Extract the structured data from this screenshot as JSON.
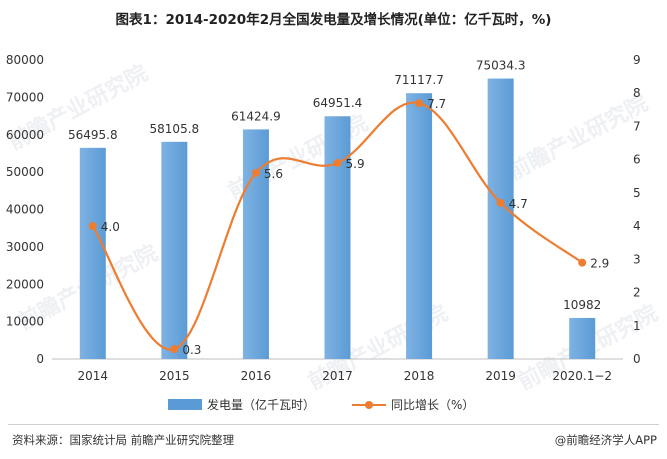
{
  "title": "图表1：2014-2020年2月全国发电量及增长情况(单位：亿千瓦时，%)",
  "footer": {
    "source": "资料来源：国家统计局 前瞻产业研究院整理",
    "brand": "@前瞻经济学人APP"
  },
  "watermark": "前瞻产业研究院",
  "colors": {
    "bar": "#5b9bd5",
    "bar_light": "#7fb2e3",
    "line": "#ed7d31"
  },
  "chart_data": {
    "type": "bar+line",
    "categories": [
      "2014",
      "2015",
      "2016",
      "2017",
      "2018",
      "2019",
      "2020.1−2"
    ],
    "series": [
      {
        "name": "发电量（亿千瓦时）",
        "type": "bar",
        "axis": "left",
        "values": [
          56495.8,
          58105.8,
          61424.9,
          64951.4,
          71117.7,
          75034.3,
          10982
        ],
        "labels": [
          "56495.8",
          "58105.8",
          "61424.9",
          "64951.4",
          "71117.7",
          "75034.3",
          "10982"
        ]
      },
      {
        "name": "同比增长（%）",
        "type": "line",
        "axis": "right",
        "smooth": true,
        "values": [
          4.0,
          0.3,
          5.6,
          5.9,
          7.7,
          4.7,
          2.9
        ],
        "labels": [
          "4.0",
          "0.3",
          "5.6",
          "5.9",
          "7.7",
          "4.7",
          "2.9"
        ]
      }
    ],
    "y_left": {
      "min": 0,
      "max": 80000,
      "ticks": [
        0,
        10000,
        20000,
        30000,
        40000,
        50000,
        60000,
        70000,
        80000
      ]
    },
    "y_right": {
      "min": 0,
      "max": 9,
      "ticks": [
        0,
        1,
        2,
        3,
        4,
        5,
        6,
        7,
        8,
        9
      ]
    },
    "grid": false,
    "legend": "bottom"
  }
}
